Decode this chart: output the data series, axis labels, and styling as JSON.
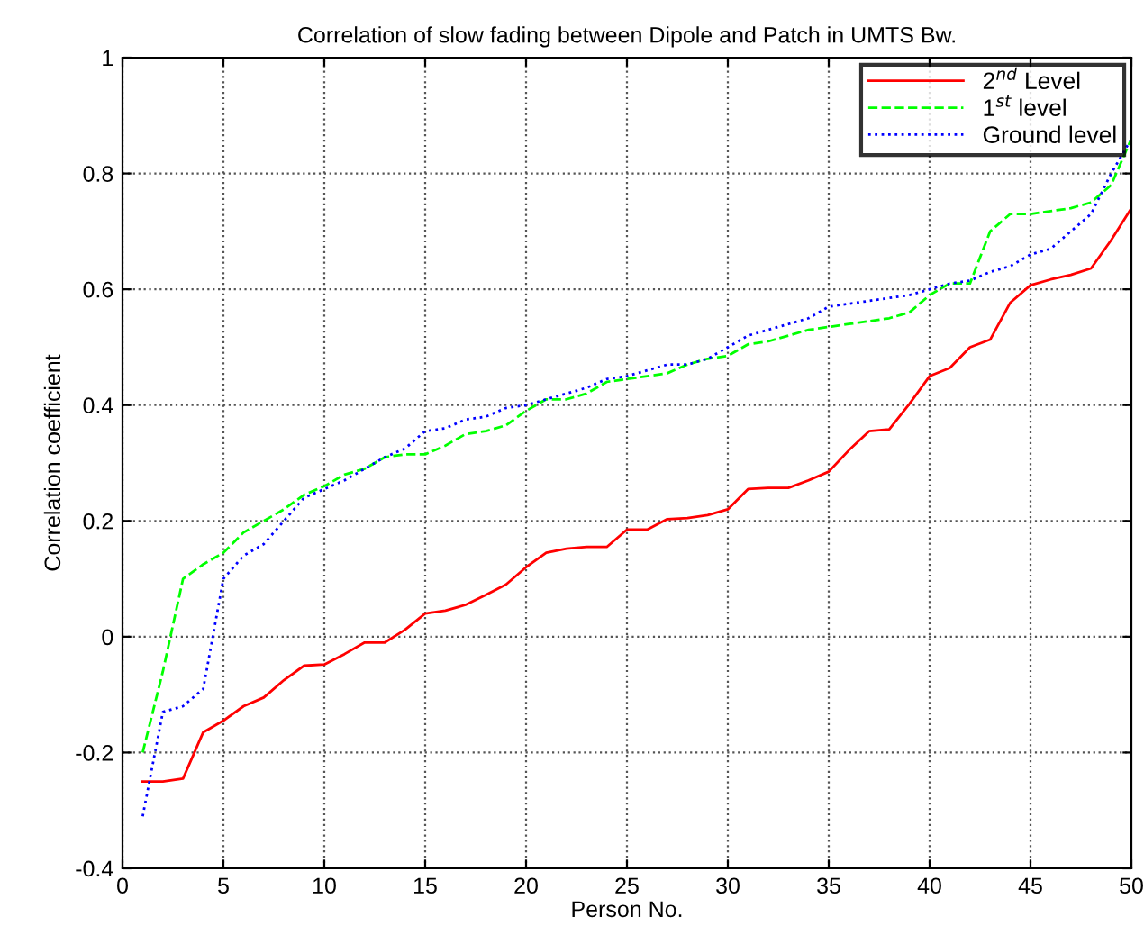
{
  "chart_data": {
    "type": "line",
    "title": "Correlation of slow fading between Dipole and Patch in UMTS Bw.",
    "xlabel": "Person No.",
    "ylabel": "Correlation coefficient",
    "x": [
      1,
      2,
      3,
      4,
      5,
      6,
      7,
      8,
      9,
      10,
      11,
      12,
      13,
      14,
      15,
      16,
      17,
      18,
      19,
      20,
      21,
      22,
      23,
      24,
      25,
      26,
      27,
      28,
      29,
      30,
      31,
      32,
      33,
      34,
      35,
      36,
      37,
      38,
      39,
      40,
      41,
      42,
      43,
      44,
      45,
      46,
      47,
      48,
      49,
      50
    ],
    "series": [
      {
        "name": "2$^{nd}$ Level",
        "color": "#ff0000",
        "line_style": "solid",
        "values": [
          -0.25,
          -0.25,
          -0.245,
          -0.165,
          -0.145,
          -0.12,
          -0.105,
          -0.075,
          -0.05,
          -0.048,
          -0.03,
          -0.01,
          -0.01,
          0.012,
          0.04,
          0.045,
          0.055,
          0.072,
          0.09,
          0.12,
          0.145,
          0.152,
          0.155,
          0.155,
          0.185,
          0.185,
          0.203,
          0.205,
          0.21,
          0.22,
          0.255,
          0.257,
          0.257,
          0.27,
          0.285,
          0.322,
          0.355,
          0.358,
          0.402,
          0.45,
          0.464,
          0.5,
          0.513,
          0.577,
          0.607,
          0.617,
          0.625,
          0.636,
          0.685,
          0.74
        ]
      },
      {
        "name": "1$^{st}$ level",
        "color": "#00ff00",
        "line_style": "dashed",
        "values": [
          -0.2,
          -0.06,
          0.1,
          0.125,
          0.145,
          0.18,
          0.2,
          0.22,
          0.245,
          0.26,
          0.28,
          0.29,
          0.31,
          0.315,
          0.315,
          0.33,
          0.35,
          0.355,
          0.365,
          0.39,
          0.41,
          0.41,
          0.42,
          0.44,
          0.445,
          0.45,
          0.455,
          0.47,
          0.48,
          0.485,
          0.505,
          0.51,
          0.52,
          0.53,
          0.535,
          0.54,
          0.545,
          0.55,
          0.56,
          0.59,
          0.61,
          0.61,
          0.7,
          0.73,
          0.73,
          0.735,
          0.74,
          0.75,
          0.78,
          0.86
        ]
      },
      {
        "name": "Ground level",
        "color": "#0000ff",
        "line_style": "dotted",
        "values": [
          -0.31,
          -0.13,
          -0.12,
          -0.09,
          0.1,
          0.14,
          0.16,
          0.2,
          0.24,
          0.255,
          0.27,
          0.29,
          0.31,
          0.325,
          0.355,
          0.36,
          0.375,
          0.38,
          0.395,
          0.4,
          0.41,
          0.42,
          0.43,
          0.445,
          0.45,
          0.46,
          0.47,
          0.47,
          0.48,
          0.5,
          0.52,
          0.53,
          0.54,
          0.55,
          0.57,
          0.575,
          0.58,
          0.585,
          0.59,
          0.6,
          0.61,
          0.615,
          0.63,
          0.64,
          0.66,
          0.67,
          0.7,
          0.73,
          0.8,
          0.86
        ]
      }
    ],
    "xlim": [
      0,
      50
    ],
    "xticks": [
      0,
      5,
      10,
      15,
      20,
      25,
      30,
      35,
      40,
      45,
      50
    ],
    "ylim": [
      -0.4,
      1
    ],
    "yticks": [
      -0.4,
      -0.2,
      0,
      0.2,
      0.4,
      0.6,
      0.8,
      1
    ],
    "grid": true,
    "legend": "top right",
    "marker": "none"
  }
}
